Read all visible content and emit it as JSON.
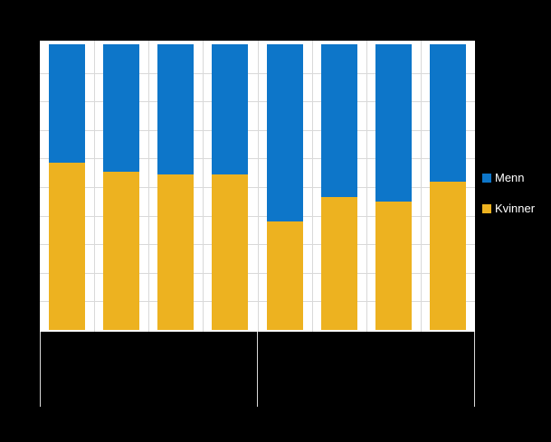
{
  "chart_data": {
    "type": "bar",
    "variant": "stacked-100-percent",
    "orientation": "vertical",
    "title": "",
    "n_categories": 8,
    "category_axis": {
      "labels_visible": false,
      "groups": [
        {
          "categories": 4
        },
        {
          "categories": 4
        }
      ]
    },
    "value_axis": {
      "min": 0,
      "max": 100,
      "gridline_step": 10,
      "labels_visible": false
    },
    "series": [
      {
        "name": "Menn",
        "color": "#0d76c9",
        "values": [
          41.5,
          44.5,
          45.5,
          45.5,
          62.0,
          53.5,
          55.0,
          48.0
        ]
      },
      {
        "name": "Kvinner",
        "color": "#edb220",
        "values": [
          58.5,
          55.5,
          54.5,
          54.5,
          38.0,
          46.5,
          45.0,
          52.0
        ]
      }
    ],
    "legend": {
      "position": "right",
      "text_color": "#ffffff",
      "items": [
        "Menn",
        "Kvinner"
      ]
    },
    "colors": {
      "page_background": "#000000",
      "plot_background": "#ffffff",
      "gridline": "#d9d9d9",
      "separator": "#d9d9d9"
    },
    "grid": true
  }
}
